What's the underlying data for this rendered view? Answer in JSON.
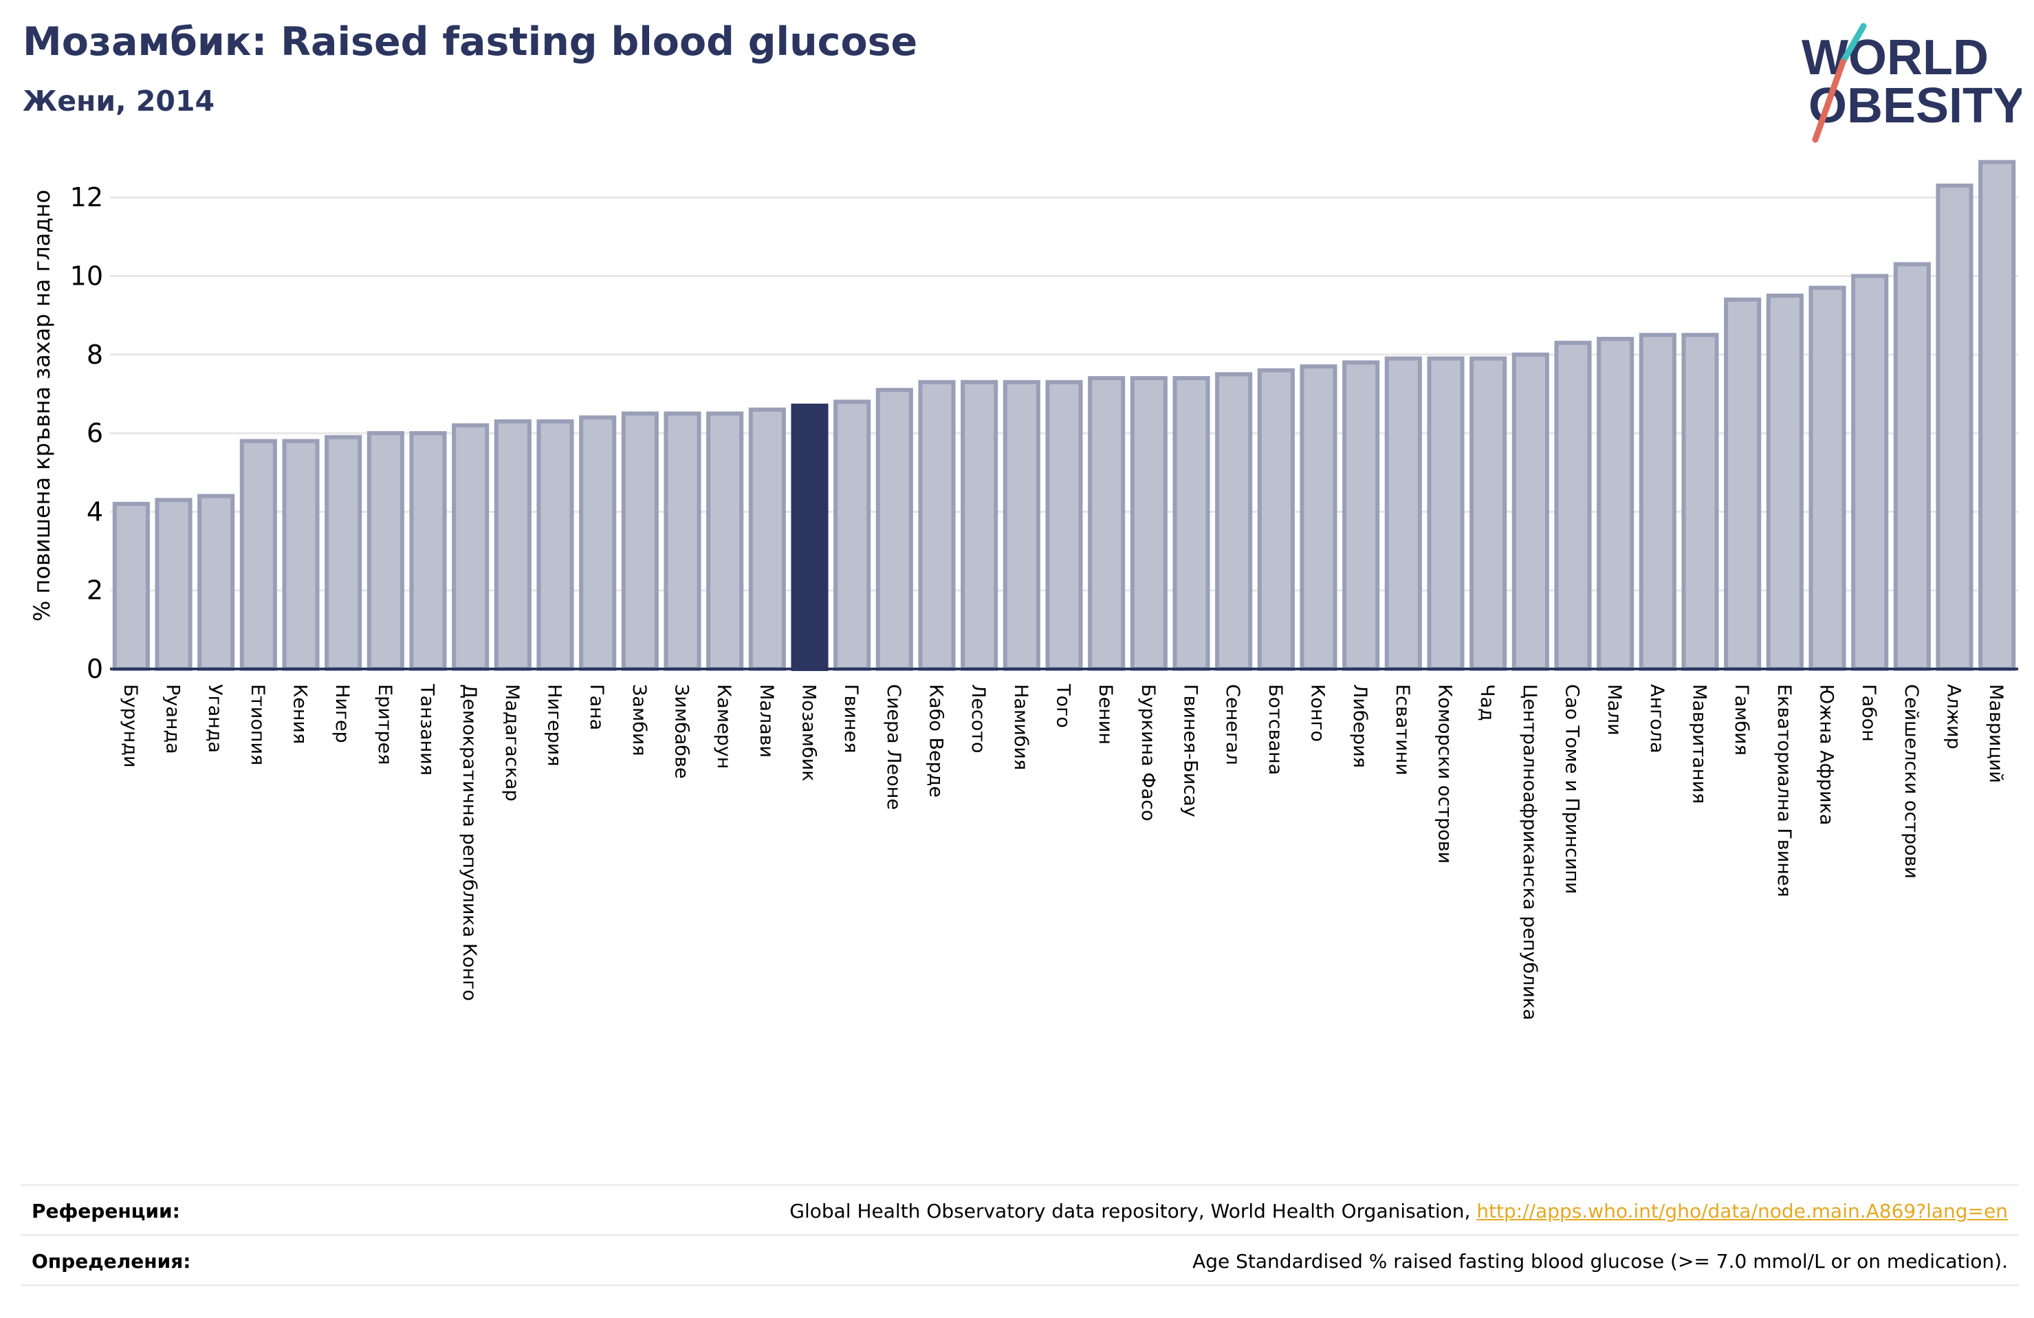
{
  "header": {
    "title": "Мозамбик: Raised fasting blood glucose",
    "subtitle": "Жени, 2014"
  },
  "logo": {
    "line1": "WORLD",
    "line2": "OBESITY"
  },
  "colors": {
    "bar_fill": "#bcc0cf",
    "bar_stroke": "#9a9fb8",
    "highlight": "#2b3560",
    "title": "#2b3560",
    "grid": "#e6e6e6",
    "link": "#e5a820",
    "logo_teal": "#3bbfbf",
    "logo_red": "#e06b5b"
  },
  "chart_data": {
    "type": "bar",
    "ylabel": "% повишена кръвна захар на гладно",
    "xlabel": "",
    "ylim": [
      0,
      13
    ],
    "yticks": [
      0,
      2,
      4,
      6,
      8,
      10,
      12
    ],
    "grid": true,
    "highlight": "Мозамбик",
    "categories": [
      "Бурунди",
      "Руанда",
      "Уганда",
      "Етиопия",
      "Кения",
      "Нигер",
      "Еритрея",
      "Танзания",
      "Демократична република Конго",
      "Мадагаскар",
      "Нигерия",
      "Гана",
      "Замбия",
      "Зимбабве",
      "Камерун",
      "Малави",
      "Мозамбик",
      "Гвинея",
      "Сиера Леоне",
      "Кабо Верде",
      "Лесото",
      "Намибия",
      "Того",
      "Бенин",
      "Буркина Фасо",
      "Гвинея-Бисау",
      "Сенегал",
      "Ботсвана",
      "Конго",
      "Либерия",
      "Есватини",
      "Коморски острови",
      "Чад",
      "Централноафриканска република",
      "Сао Томе и Принсипи",
      "Мали",
      "Ангола",
      "Мавритания",
      "Гамбия",
      "Екваториална Гвинея",
      "Южна Африка",
      "Габон",
      "Сейшелски острови",
      "Алжир",
      "Мавриций"
    ],
    "values": [
      4.2,
      4.3,
      4.4,
      5.8,
      5.8,
      5.9,
      6.0,
      6.0,
      6.2,
      6.3,
      6.3,
      6.4,
      6.5,
      6.5,
      6.5,
      6.6,
      6.7,
      6.8,
      7.1,
      7.3,
      7.3,
      7.3,
      7.3,
      7.4,
      7.4,
      7.4,
      7.5,
      7.6,
      7.7,
      7.8,
      7.9,
      7.9,
      7.9,
      8.0,
      8.3,
      8.4,
      8.5,
      8.5,
      9.4,
      9.5,
      9.7,
      10.0,
      10.3,
      12.3,
      12.9
    ]
  },
  "references": {
    "label": "Референции:",
    "text": "Global Health Observatory data repository, World Health Organisation, ",
    "link": "http://apps.who.int/gho/data/node.main.A869?lang=en"
  },
  "definitions": {
    "label": "Определения:",
    "text": "Age Standardised % raised fasting blood glucose (>= 7.0 mmol/L or on medication)."
  }
}
